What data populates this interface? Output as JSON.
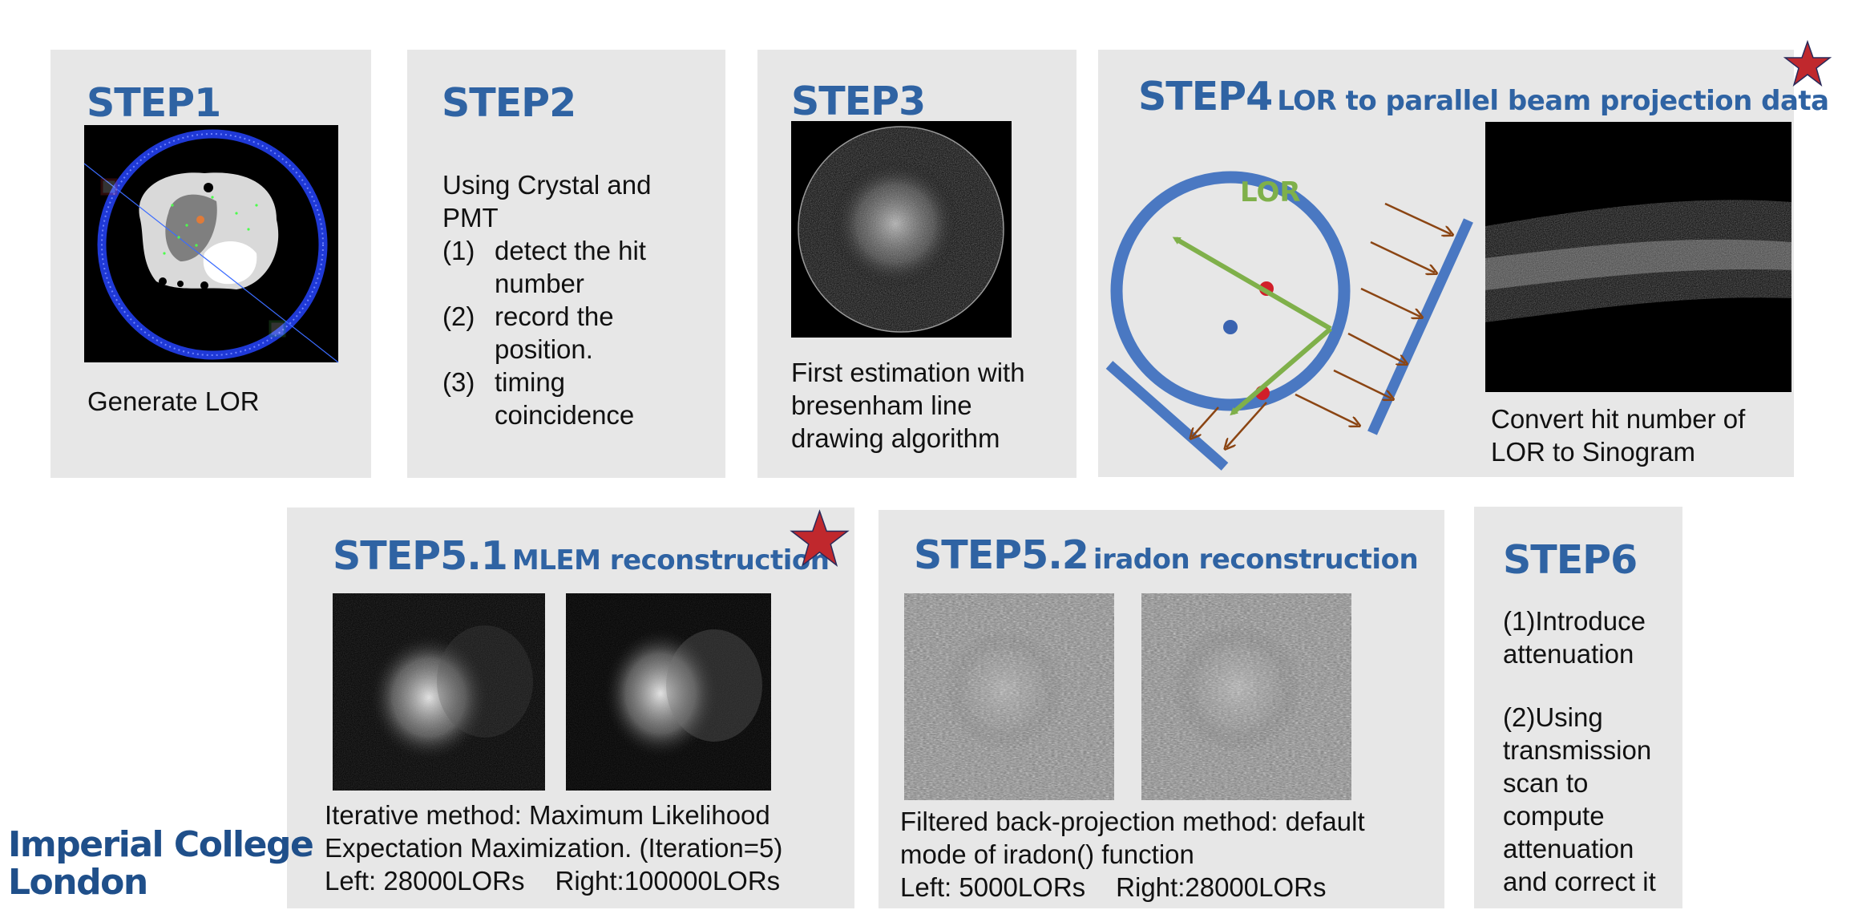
{
  "steps": {
    "s1": {
      "title": "STEP1",
      "caption": "Generate LOR"
    },
    "s2": {
      "title": "STEP2",
      "intro": "Using Crystal and PMT",
      "items": [
        {
          "num": "(1)",
          "text": "detect the hit number"
        },
        {
          "num": "(2)",
          "text": "record the position."
        },
        {
          "num": "(3)",
          "text": "timing coincidence"
        }
      ]
    },
    "s3": {
      "title": "STEP3",
      "caption": "First estimation with bresenham line drawing algorithm"
    },
    "s4": {
      "title": "STEP4",
      "subtitle": "LOR to parallel beam projection data",
      "diagram_label": "LOR",
      "caption": "Convert hit number of LOR to Sinogram"
    },
    "s51": {
      "title": "STEP5.1",
      "subtitle": "MLEM reconstruction",
      "line1": "Iterative method: Maximum Likelihood",
      "line2": "Expectation Maximization. (Iteration=5)",
      "left": "Left: 28000LORs",
      "right": "Right:100000LORs"
    },
    "s52": {
      "title": "STEP5.2",
      "subtitle": "iradon reconstruction",
      "line1": "Filtered back-projection method: default",
      "line2": "mode of iradon() function",
      "left": "Left: 5000LORs",
      "right": "Right:28000LORs"
    },
    "s6": {
      "title": "STEP6",
      "p1": "(1)Introduce attenuation",
      "p2": "(2)Using transmission scan to compute attenuation and correct it"
    }
  },
  "logo": {
    "line1": "Imperial College",
    "line2": "London"
  },
  "colors": {
    "title": "#2f63a3",
    "panel": "#e7e7e7",
    "star": "#c0282d",
    "ring": "#4a78c2",
    "lor": "#7fb04a",
    "arrow": "#8b4513"
  }
}
